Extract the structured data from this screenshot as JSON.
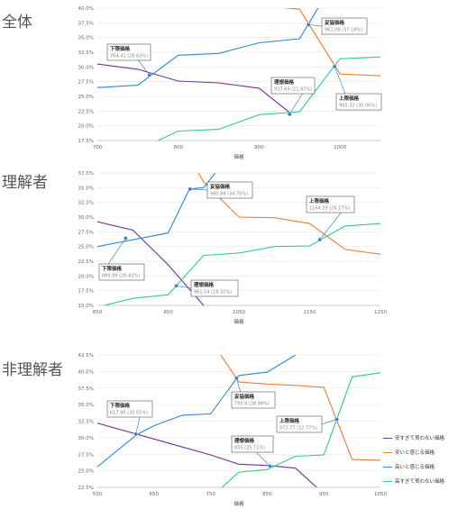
{
  "colors": {
    "too_cheap": "#7030a0",
    "cheap": "#ed7d31",
    "expensive": "#2e86d4",
    "too_expensive": "#2ecc8a"
  },
  "legend": [
    {
      "key": "too_cheap",
      "label": "安すぎて買わない価格"
    },
    {
      "key": "cheap",
      "label": "安いと感じる価格"
    },
    {
      "key": "expensive",
      "label": "高いと感じる価格"
    },
    {
      "key": "too_expensive",
      "label": "高すぎて買わない価格"
    }
  ],
  "chart_data": [
    {
      "type": "line",
      "section_label": "全体",
      "xlabel": "価格",
      "xlim": [
        700,
        1050
      ],
      "ylim": [
        17.5,
        40.0
      ],
      "xticks": [
        "700",
        "800",
        "900",
        "1000"
      ],
      "yticks": [
        "17.5%",
        "20.0%",
        "22.5%",
        "25.0%",
        "27.5%",
        "30.0%",
        "32.5%",
        "35.0%",
        "37.5%",
        "40.0%"
      ],
      "series": [
        {
          "key": "too_cheap",
          "points": [
            [
              700,
              30.5
            ],
            [
              750,
              29.6
            ],
            [
              800,
              27.6
            ],
            [
              850,
              27.3
            ],
            [
              900,
              26.4
            ],
            [
              940,
              22.0
            ]
          ]
        },
        {
          "key": "cheap",
          "points": [
            [
              900,
              40.5
            ],
            [
              950,
              39.8
            ],
            [
              1000,
              28.8
            ],
            [
              1050,
              28.5
            ]
          ]
        },
        {
          "key": "expensive",
          "points": [
            [
              700,
              26.5
            ],
            [
              750,
              26.9
            ],
            [
              800,
              32.0
            ],
            [
              850,
              32.3
            ],
            [
              900,
              34.1
            ],
            [
              950,
              34.8
            ],
            [
              975,
              40.5
            ]
          ]
        },
        {
          "key": "too_expensive",
          "points": [
            [
              775,
              17.5
            ],
            [
              800,
              19.1
            ],
            [
              850,
              19.4
            ],
            [
              900,
              21.9
            ],
            [
              950,
              22.4
            ],
            [
              1000,
              31.4
            ],
            [
              1050,
              31.7
            ]
          ]
        }
      ],
      "annotations": [
        {
          "title": "下限価格",
          "value": "764.41 (28.63%)",
          "x": 764.41,
          "y": 28.63
        },
        {
          "title": "妥協価格",
          "value": "961.08 (37.18%)",
          "x": 961.08,
          "y": 37.18
        },
        {
          "title": "理想価格",
          "value": "937.69 (21.97%)",
          "x": 937.69,
          "y": 21.97
        },
        {
          "title": "上限価格",
          "value": "993.32 (30.06%)",
          "x": 993.32,
          "y": 30.06
        }
      ]
    },
    {
      "type": "line",
      "section_label": "理解者",
      "xlabel": "価格",
      "xlim": [
        850,
        1250
      ],
      "ylim": [
        15.0,
        37.5
      ],
      "xticks": [
        "850",
        "950",
        "1050",
        "1150",
        "1250"
      ],
      "yticks": [
        "15.0%",
        "17.5%",
        "20.0%",
        "22.5%",
        "25.0%",
        "27.5%",
        "30.0%",
        "32.5%",
        "35.0%",
        "37.5%"
      ],
      "series": [
        {
          "key": "too_cheap",
          "points": [
            [
              850,
              29.2
            ],
            [
              900,
              27.8
            ],
            [
              950,
              21.9
            ],
            [
              1000,
              15.0
            ]
          ]
        },
        {
          "key": "cheap",
          "points": [
            [
              990,
              38.0
            ],
            [
              1000,
              36.0
            ],
            [
              1050,
              30.0
            ],
            [
              1100,
              29.9
            ],
            [
              1150,
              28.9
            ],
            [
              1200,
              24.5
            ],
            [
              1250,
              23.7
            ]
          ]
        },
        {
          "key": "expensive",
          "points": [
            [
              850,
              25.0
            ],
            [
              950,
              27.3
            ],
            [
              980,
              34.76
            ],
            [
              1000,
              35.0
            ],
            [
              1020,
              38.0
            ]
          ]
        },
        {
          "key": "too_expensive",
          "points": [
            [
              860,
              15.0
            ],
            [
              900,
              16.2
            ],
            [
              950,
              16.8
            ],
            [
              1000,
              23.5
            ],
            [
              1050,
              23.9
            ],
            [
              1100,
              25.0
            ],
            [
              1150,
              25.1
            ],
            [
              1200,
              28.5
            ],
            [
              1250,
              28.9
            ]
          ]
        }
      ],
      "annotations": [
        {
          "title": "妥協価格",
          "value": "980.88 (34.76%)",
          "x": 980.88,
          "y": 34.76
        },
        {
          "title": "上限価格",
          "value": "1164.29 (26.17%)",
          "x": 1164.29,
          "y": 26.17
        },
        {
          "title": "下限価格",
          "value": "889.99 (26.42%)",
          "x": 889.99,
          "y": 26.42
        },
        {
          "title": "理想価格",
          "value": "961.54 (18.32%)",
          "x": 961.54,
          "y": 18.32
        }
      ]
    },
    {
      "type": "line",
      "section_label": "非理解者",
      "xlabel": "価格",
      "xlim": [
        550,
        1050
      ],
      "ylim": [
        22.5,
        42.5
      ],
      "xticks": [
        "550",
        "650",
        "750",
        "850",
        "950",
        "1050"
      ],
      "yticks": [
        "22.5%",
        "25.0%",
        "27.5%",
        "30.0%",
        "32.5%",
        "35.0%",
        "37.5%",
        "40.0%",
        "42.5%"
      ],
      "series": [
        {
          "key": "too_cheap",
          "points": [
            [
              550,
              32.2
            ],
            [
              650,
              29.8
            ],
            [
              700,
              28.6
            ],
            [
              750,
              27.4
            ],
            [
              800,
              26.0
            ],
            [
              850,
              25.8
            ],
            [
              900,
              25.4
            ],
            [
              950,
              21.5
            ]
          ]
        },
        {
          "key": "cheap",
          "points": [
            [
              760,
              43.5
            ],
            [
              800,
              38.4
            ],
            [
              850,
              38.1
            ],
            [
              900,
              37.9
            ],
            [
              950,
              37.6
            ],
            [
              1000,
              26.7
            ],
            [
              1050,
              26.6
            ]
          ]
        },
        {
          "key": "expensive",
          "points": [
            [
              550,
              25.6
            ],
            [
              620,
              30.5
            ],
            [
              650,
              31.8
            ],
            [
              700,
              33.4
            ],
            [
              750,
              33.6
            ],
            [
              800,
              39.4
            ],
            [
              850,
              39.9
            ],
            [
              900,
              42.5
            ]
          ]
        },
        {
          "key": "too_expensive",
          "points": [
            [
              770,
              22.5
            ],
            [
              800,
              24.8
            ],
            [
              850,
              25.2
            ],
            [
              900,
              27.2
            ],
            [
              950,
              27.4
            ],
            [
              1000,
              39.2
            ],
            [
              1050,
              39.8
            ]
          ]
        }
      ],
      "annotations": [
        {
          "title": "下限価格",
          "value": "617.96 (30.55%)",
          "x": 617.96,
          "y": 30.55
        },
        {
          "title": "妥協価格",
          "value": "795.9 (38.98%)",
          "x": 795.9,
          "y": 38.98
        },
        {
          "title": "上限価格",
          "value": "972.77 (32.77%)",
          "x": 972.77,
          "y": 32.77
        },
        {
          "title": "理想価格",
          "value": "855 (25.71%)",
          "x": 855,
          "y": 25.71
        }
      ]
    }
  ]
}
